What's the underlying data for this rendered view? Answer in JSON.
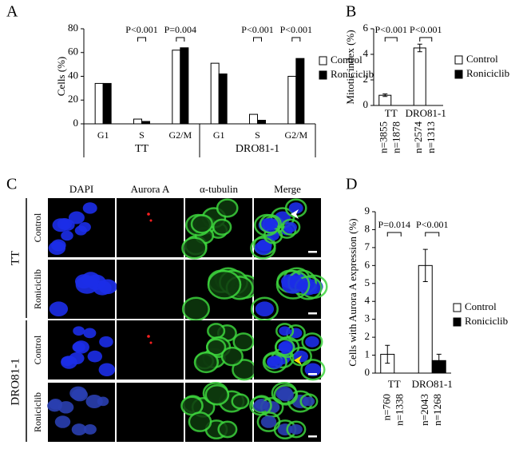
{
  "chart_data": [
    {
      "type": "bar",
      "panel": "A",
      "ylabel": "Cells (%)",
      "categories": [
        "G1",
        "S",
        "G2/M",
        "G1",
        "S",
        "G2/M"
      ],
      "groups": [
        "TT",
        "DRO81-1"
      ],
      "ylim": [
        0,
        80
      ],
      "yticks": [
        0,
        20,
        40,
        60,
        80
      ],
      "series": [
        {
          "name": "Control",
          "color": "#ffffff",
          "values": [
            34,
            4,
            62,
            51,
            8,
            40
          ]
        },
        {
          "name": "Roniciclib",
          "color": "#000000",
          "values": [
            34,
            2,
            64,
            42,
            3,
            55
          ]
        }
      ],
      "p_values": [
        null,
        "P<0.001",
        "P=0.004",
        null,
        "P<0.001",
        "P<0.001"
      ]
    },
    {
      "type": "bar",
      "panel": "B",
      "ylabel": "Mitotic index (%)",
      "categories": [
        "TT",
        "DRO81-1"
      ],
      "ylim": [
        0,
        6
      ],
      "yticks": [
        0,
        2,
        4,
        6
      ],
      "series": [
        {
          "name": "Control",
          "color": "#ffffff",
          "values": [
            0.8,
            4.5
          ],
          "errors": [
            0.1,
            0.3
          ],
          "n_labels": [
            "n=3855",
            "n=2574"
          ]
        },
        {
          "name": "Roniciclib",
          "color": "#000000",
          "values": [
            0,
            0
          ],
          "errors": [
            0,
            0
          ],
          "n_labels": [
            "n=1878",
            "n=1313"
          ]
        }
      ],
      "p_values": [
        "P<0.001",
        "P<0.001"
      ]
    },
    {
      "type": "bar",
      "panel": "D",
      "ylabel": "Cells with Aurora A expression (%)",
      "categories": [
        "TT",
        "DRO81-1"
      ],
      "ylim": [
        0,
        9
      ],
      "yticks": [
        0,
        1,
        2,
        3,
        4,
        5,
        6,
        7,
        8,
        9
      ],
      "series": [
        {
          "name": "Control",
          "color": "#ffffff",
          "values": [
            1.05,
            6.0
          ],
          "errors": [
            0.5,
            0.9
          ],
          "n_labels": [
            "n=760",
            "n=2043"
          ]
        },
        {
          "name": "Roniciclib",
          "color": "#000000",
          "values": [
            0,
            0.7
          ],
          "errors": [
            0,
            0.35
          ],
          "n_labels": [
            "n=1338",
            "n=1268"
          ]
        }
      ],
      "p_values": [
        "P=0.014",
        "P<0.001"
      ]
    }
  ],
  "microscopy": {
    "panel": "C",
    "columns": [
      "DAPI",
      "Aurora A",
      "α-tubulin",
      "Merge"
    ],
    "rows": [
      "Control",
      "Roniciclib",
      "Control",
      "Roniciclib"
    ],
    "groups": [
      "TT",
      "DRO81-1"
    ]
  }
}
